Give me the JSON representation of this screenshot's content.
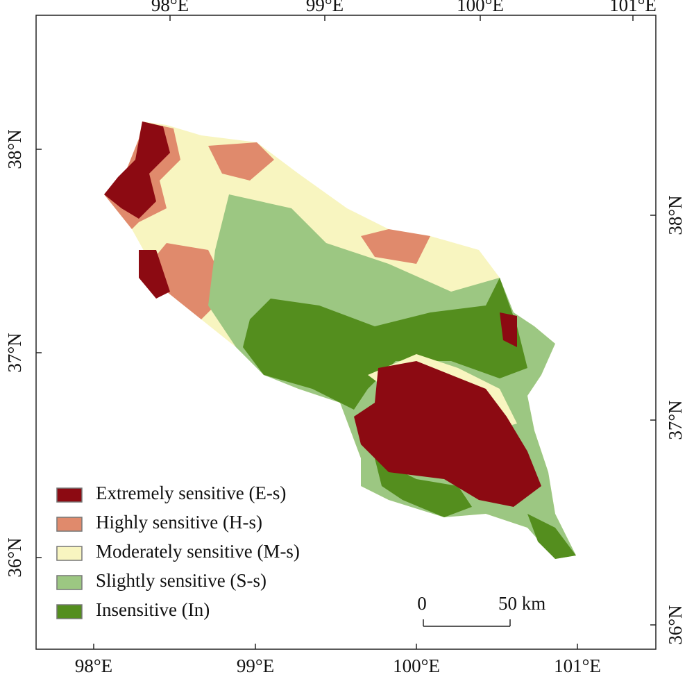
{
  "map": {
    "top_ticks": [
      "98°E",
      "99°E",
      "100°E",
      "101°E"
    ],
    "bottom_ticks": [
      "98°E",
      "99°E",
      "100°E",
      "101°E"
    ],
    "left_ticks": [
      "38°N",
      "37°N",
      "36°N"
    ],
    "right_ticks": [
      "38°N",
      "37°N",
      "36°N"
    ],
    "legend": [
      {
        "label": "Extremely sensitive (E-s)",
        "color": "#8c0a12"
      },
      {
        "label": "Highly sensitive (H-s)",
        "color": "#e08a6c"
      },
      {
        "label": "Moderately sensitive (M-s)",
        "color": "#f8f5c0"
      },
      {
        "label": "Slightly sensitive (S-s)",
        "color": "#9cc782"
      },
      {
        "label": "Insensitive (In)",
        "color": "#548e1e"
      }
    ],
    "scale_bar": {
      "start": "0",
      "end": "50 km"
    }
  }
}
